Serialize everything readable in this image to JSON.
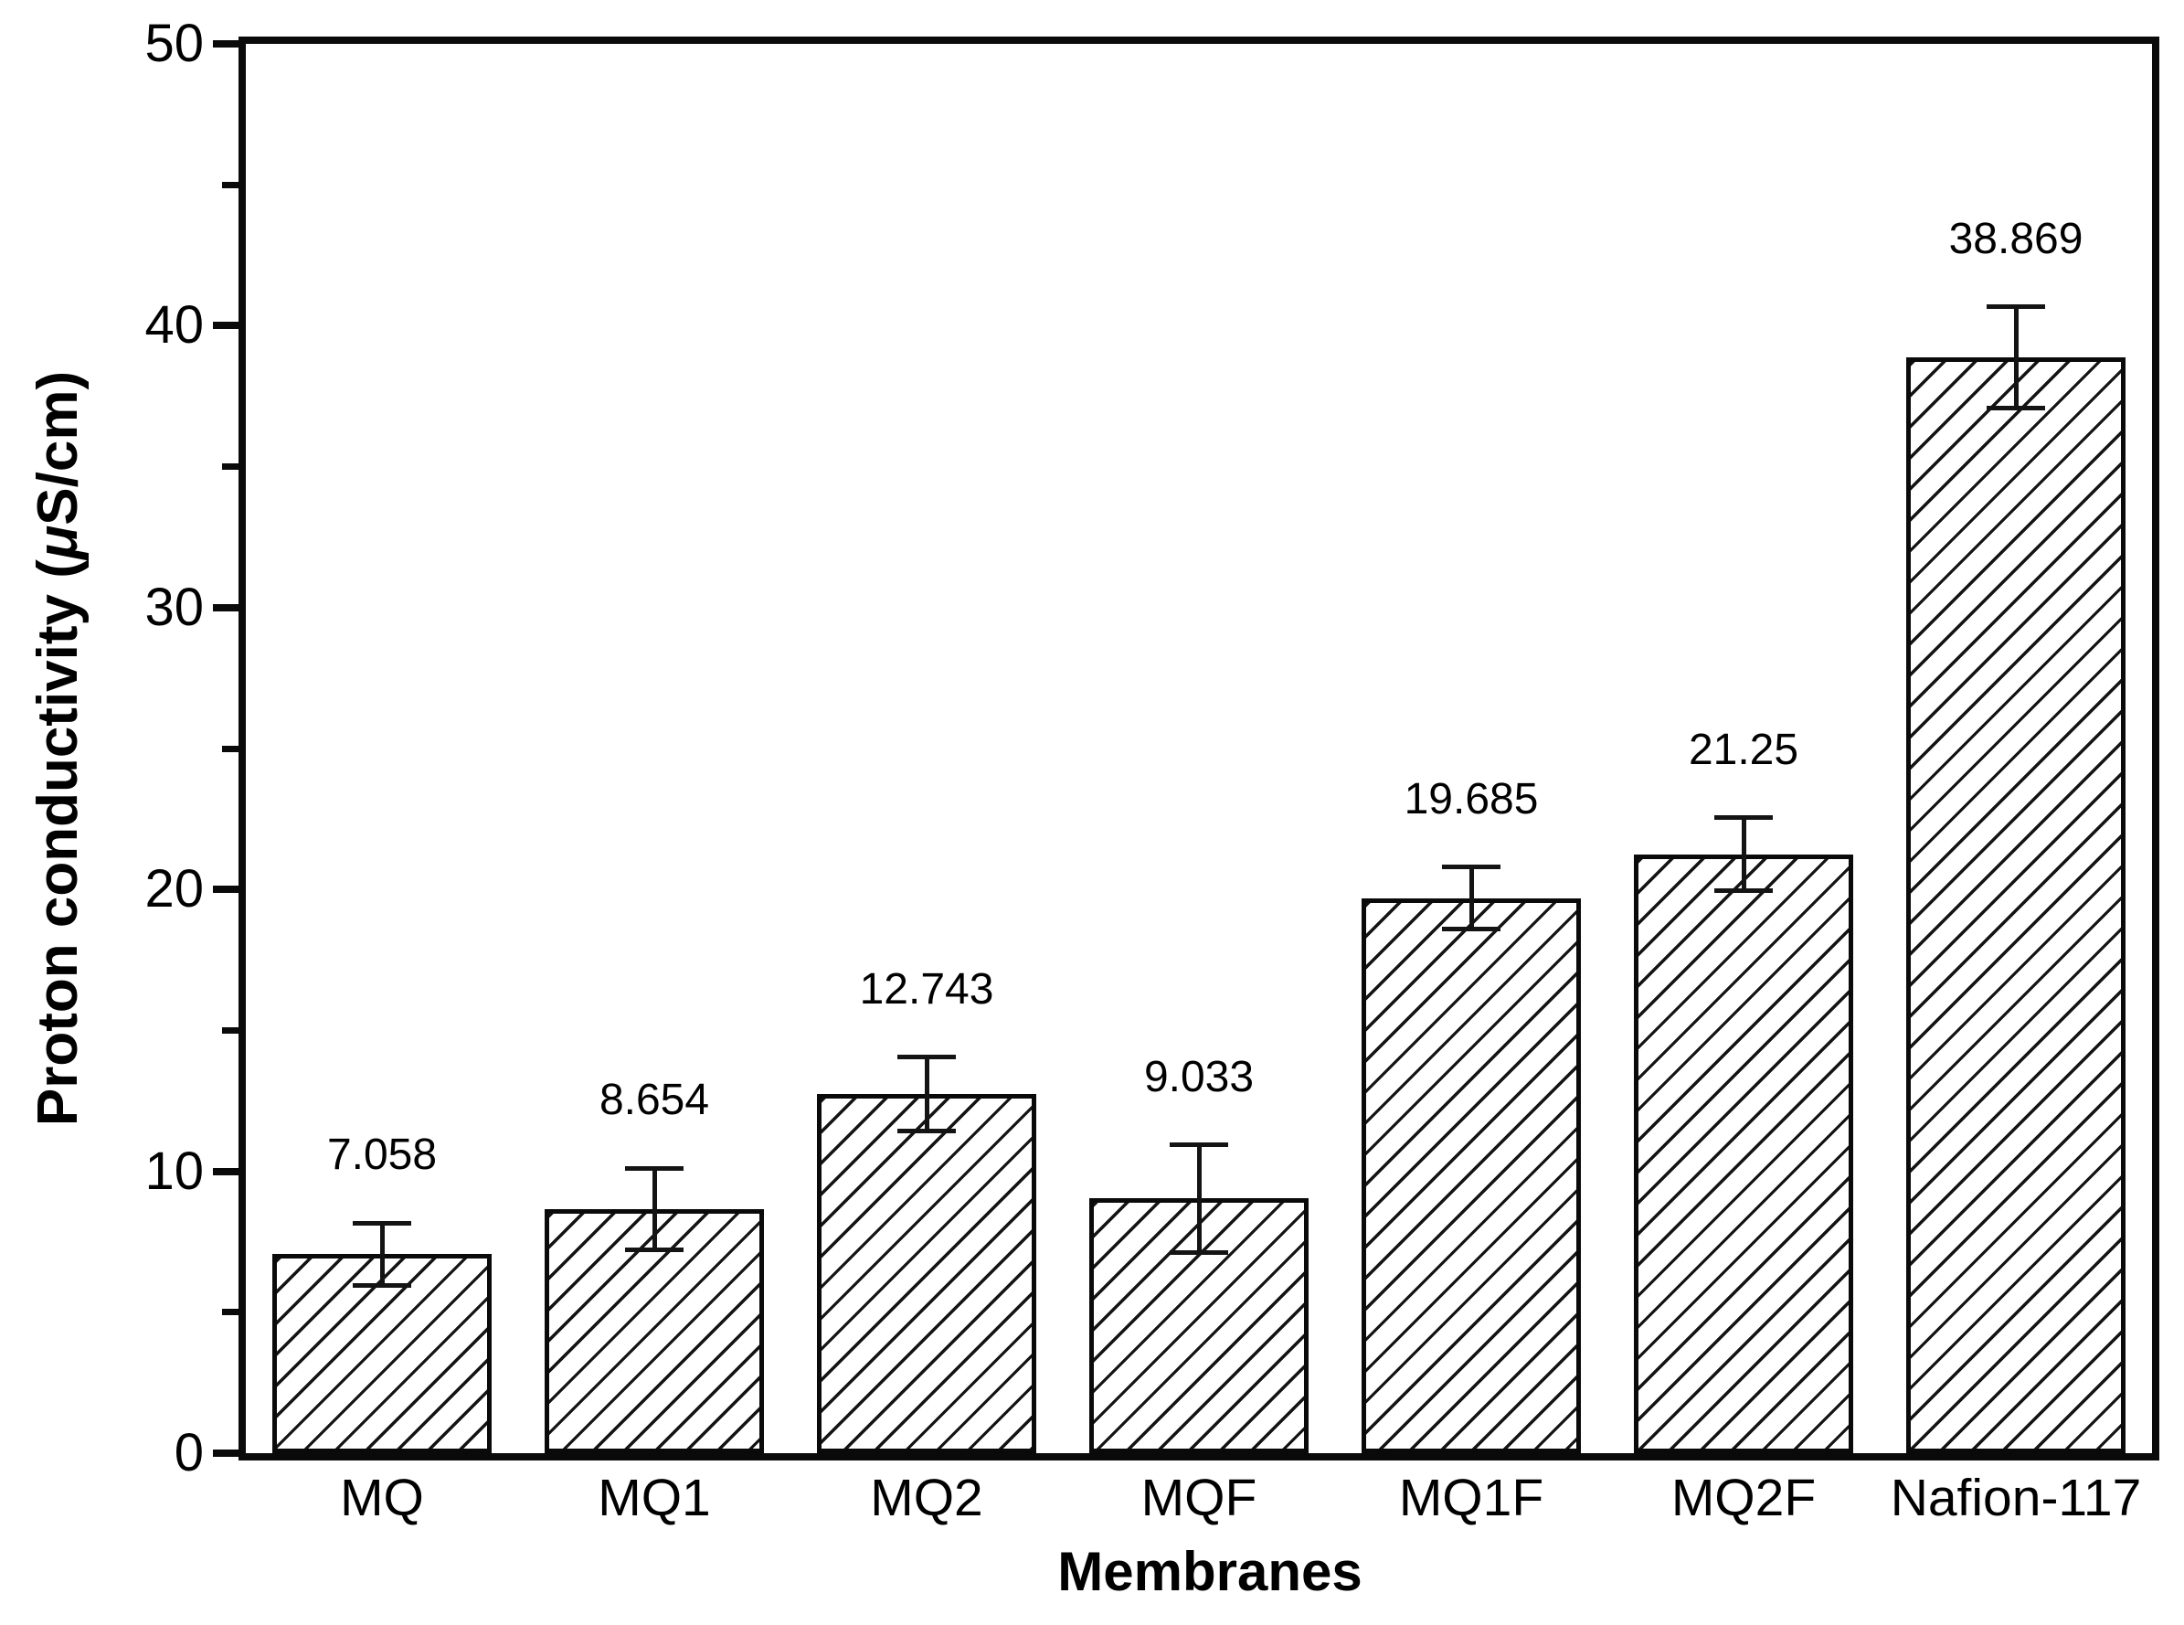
{
  "figure": {
    "background": "#ffffff",
    "ink": "#000000"
  },
  "chart_data": {
    "type": "bar",
    "title": "",
    "xlabel": "Membranes",
    "ylabel": "Proton conductivity (μS/cm)",
    "ylabel_prefix": "Proton conductivity (",
    "ylabel_mu": "μ",
    "ylabel_suffix": "S/cm)",
    "categories": [
      "MQ",
      "MQ1",
      "MQ2",
      "MQF",
      "MQ1F",
      "MQ2F",
      "Nafion-117"
    ],
    "values": [
      7.058,
      8.654,
      12.743,
      9.033,
      19.685,
      21.25,
      38.869
    ],
    "value_labels": [
      "7.058",
      "8.654",
      "12.743",
      "9.033",
      "19.685",
      "21.25",
      "38.869"
    ],
    "error_bars": [
      1.1,
      1.45,
      1.3,
      1.9,
      1.1,
      1.3,
      1.8
    ],
    "ylim": [
      0,
      50
    ],
    "yticks_major": [
      0,
      10,
      20,
      30,
      40,
      50
    ],
    "yticks_minor": [
      5,
      15,
      25,
      35,
      45
    ],
    "grid": false,
    "legend": false,
    "bar_fill": "#ffffff",
    "bar_hatch": "forward-diagonal",
    "bar_edge_color": "#000000",
    "error_bar_color": "#000000"
  }
}
